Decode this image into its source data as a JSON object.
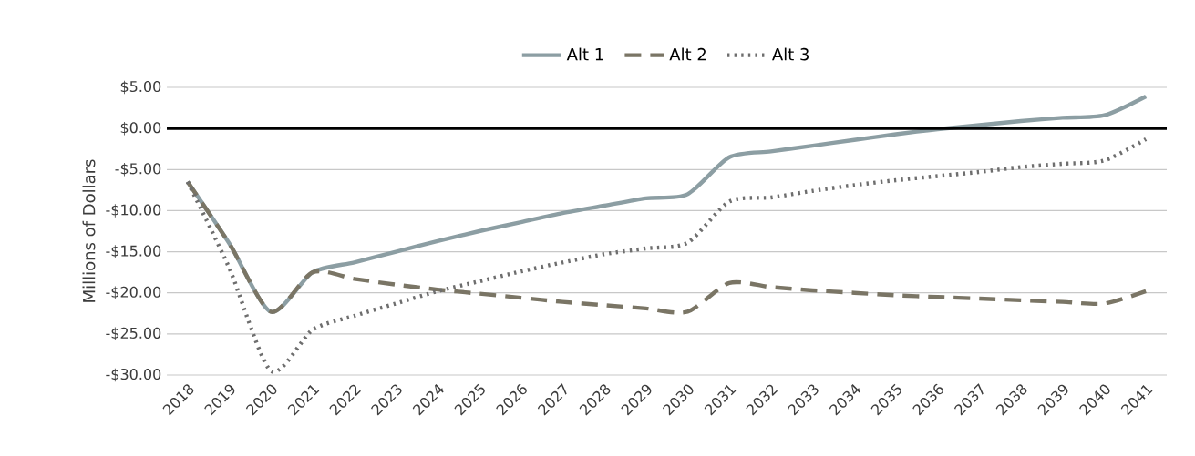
{
  "chart_data": {
    "type": "line",
    "ylabel": "Millions of Dollars",
    "categories": [
      "2018",
      "2019",
      "2020",
      "2021",
      "2022",
      "2023",
      "2024",
      "2025",
      "2026",
      "2027",
      "2028",
      "2029",
      "2030",
      "2031",
      "2032",
      "2033",
      "2034",
      "2035",
      "2036",
      "2037",
      "2038",
      "2039",
      "2040",
      "2041"
    ],
    "series": [
      {
        "name": "Alt 1",
        "color": "#8c9ea3",
        "line_style": "solid",
        "values": [
          -6.5,
          -14,
          -22.3,
          -17.5,
          -16.3,
          -15,
          -13.7,
          -12.5,
          -11.4,
          -10.3,
          -9.4,
          -8.5,
          -8.0,
          -3.5,
          -2.8,
          -2.1,
          -1.4,
          -0.7,
          -0.1,
          0.4,
          0.9,
          1.3,
          1.6,
          3.9
        ]
      },
      {
        "name": "Alt 2",
        "color": "#7a7565",
        "line_style": "dashed",
        "values": [
          -6.5,
          -14,
          -22.3,
          -17.5,
          -18.3,
          -19.0,
          -19.6,
          -20.1,
          -20.6,
          -21.1,
          -21.5,
          -21.9,
          -22.3,
          -18.8,
          -19.3,
          -19.7,
          -20.0,
          -20.3,
          -20.5,
          -20.7,
          -20.9,
          -21.1,
          -21.3,
          -19.8
        ]
      },
      {
        "name": "Alt 3",
        "color": "#6e6e6e",
        "line_style": "dotted",
        "values": [
          -6.5,
          -17,
          -29.5,
          -24.5,
          -22.8,
          -21.3,
          -19.8,
          -18.6,
          -17.4,
          -16.3,
          -15.3,
          -14.6,
          -13.9,
          -8.9,
          -8.4,
          -7.6,
          -6.9,
          -6.3,
          -5.8,
          -5.3,
          -4.7,
          -4.3,
          -3.9,
          -1.3
        ]
      }
    ],
    "ylim": [
      -30,
      5
    ],
    "yticks": [
      {
        "value": 5,
        "label": "$5.00"
      },
      {
        "value": 0,
        "label": "$0.00"
      },
      {
        "value": -5,
        "label": "-$5.00"
      },
      {
        "value": -10,
        "label": "-$10.00"
      },
      {
        "value": -15,
        "label": "-$15.00"
      },
      {
        "value": -20,
        "label": "-$20.00"
      },
      {
        "value": -25,
        "label": "-$25.00"
      },
      {
        "value": -30,
        "label": "-$30.00"
      }
    ],
    "ref_lines": [
      {
        "axis": "y",
        "value": 0,
        "color": "#000000"
      }
    ],
    "grid": "y",
    "legend": "top",
    "marker": "none"
  }
}
